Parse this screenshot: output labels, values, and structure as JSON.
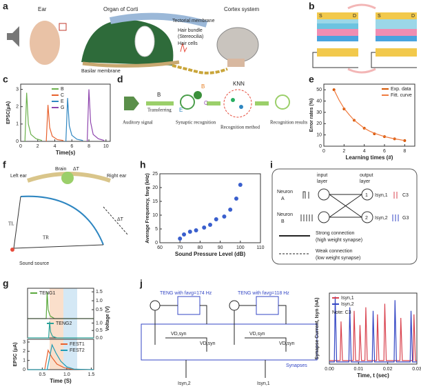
{
  "panels": {
    "letters": [
      "a",
      "b",
      "c",
      "d",
      "e",
      "f",
      "g",
      "h",
      "i",
      "j"
    ],
    "a": {
      "ear": "Ear",
      "organ": "Organ of Corti",
      "cortex": "Cortex system",
      "tectorial": "Tectorial membrane",
      "hair_bundle": "Hair bundle",
      "stereocilia": "(Stereocilia)",
      "hair_cells": "Hair cells",
      "basilar": "Basilar membrane"
    },
    "b": {
      "s1": "S",
      "d1": "D",
      "s2": "S",
      "d2": "D"
    },
    "d": {
      "auditory": "Auditory signal",
      "transferring": "Transferring",
      "b": "B",
      "synaptic": "Synaptic recognition",
      "method": "Recognition method",
      "knn": "KNN",
      "results": "Recognition results",
      "b2": "B",
      "c": "C",
      "e": "E"
    },
    "f": {
      "left": "Left ear",
      "brain": "Brain",
      "right": "Right ear",
      "dt1": "ΔT",
      "dt2": "ΔT",
      "tl": "TL",
      "tr": "TR",
      "source": "Sound source"
    },
    "i": {
      "input": "input",
      "input2": "layer",
      "output": "output",
      "output2": "layer",
      "na": "Neuron",
      "na2": "A",
      "nb": "Neuron",
      "nb2": "B",
      "n1": "1",
      "n2": "2",
      "i1": "Isyn,1",
      "i2": "Isyn,2",
      "c3": "C3",
      "g3": "G3",
      "strong": "Strong connection",
      "strong2": "(high weight synapse)",
      "weak": "Weak connection",
      "weak2": "(low weight synapse)"
    },
    "j": {
      "teng1": "TENG with favg=174 Hz",
      "teng2": "TENG with favg=118 Hz",
      "v1": "VD,syn",
      "v2": "VD,syn",
      "v3": "VD,syn",
      "v4": "VD,syn",
      "synapses": "Synapses",
      "isyn2": "Isyn,2",
      "isyn1": "Isyn,1"
    }
  },
  "chart_data": [
    {
      "type": "line",
      "ylabel": "EPSC(μA)",
      "xlabel": "Time(s)",
      "xlim": [
        0,
        10.5
      ],
      "xticks": [
        0,
        2,
        4,
        6,
        8,
        10
      ],
      "ylim": [
        0,
        3.3
      ],
      "yticks": [
        0,
        1,
        2,
        3
      ],
      "legend": "upper center",
      "series": [
        {
          "name": "B",
          "color": "#6ab04c",
          "x": [
            0.5,
            0.7,
            0.9,
            1.2,
            1.8,
            2.5
          ],
          "values": [
            0,
            2.8,
            1.0,
            0.4,
            0.15,
            0.05
          ]
        },
        {
          "name": "C",
          "color": "#e8602c",
          "x": [
            3.0,
            3.2,
            3.4,
            3.7,
            4.3,
            5.0
          ],
          "values": [
            0,
            2.1,
            0.8,
            0.3,
            0.1,
            0.05
          ]
        },
        {
          "name": "E",
          "color": "#2e86c1",
          "x": [
            5.3,
            5.5,
            5.7,
            6.0,
            6.6,
            7.3
          ],
          "values": [
            0,
            2.5,
            0.9,
            0.35,
            0.12,
            0.05
          ]
        },
        {
          "name": "G",
          "color": "#8e44ad",
          "x": [
            7.8,
            8.0,
            8.2,
            8.5,
            9.1,
            9.8
          ],
          "values": [
            0,
            3.0,
            1.1,
            0.4,
            0.15,
            0.05
          ]
        }
      ]
    },
    {
      "type": "line",
      "ylabel": "Error rates (%)",
      "xlabel": "Learning times (#)",
      "xlim": [
        0,
        9
      ],
      "xticks": [
        0,
        2,
        4,
        6,
        8
      ],
      "ylim": [
        0,
        55
      ],
      "yticks": [
        0,
        10,
        20,
        30,
        40,
        50
      ],
      "legend": "upper right",
      "series": [
        {
          "name": "Exp. data",
          "color": "#d35400",
          "style": "markers",
          "x": [
            1,
            2,
            3,
            4,
            5,
            6,
            7,
            8
          ],
          "values": [
            50,
            33,
            23,
            16,
            11,
            8.5,
            6.5,
            5
          ]
        },
        {
          "name": "Fitt. curve",
          "color": "#f07b3f",
          "style": "line",
          "x": [
            1,
            1.5,
            2,
            2.5,
            3,
            3.5,
            4,
            4.5,
            5,
            5.5,
            6,
            6.5,
            7,
            7.5,
            8
          ],
          "values": [
            50,
            41,
            33.5,
            28,
            23,
            19.5,
            16,
            13.5,
            11.5,
            10,
            8.5,
            7.5,
            6.5,
            5.8,
            5
          ]
        }
      ]
    },
    {
      "type": "scatter",
      "ylabel": "Average Frequency, favg (kHz)",
      "xlabel": "Sound Pressure Level (dB)",
      "xlim": [
        60,
        110
      ],
      "xticks": [
        60,
        70,
        80,
        90,
        100,
        110
      ],
      "ylim": [
        0,
        25
      ],
      "yticks": [
        0,
        5,
        10,
        15,
        20,
        25
      ],
      "series": [
        {
          "color": "#3a5fcd",
          "x": [
            70,
            72,
            75,
            78,
            82,
            85,
            88,
            92,
            95,
            98,
            100
          ],
          "values": [
            1.5,
            3,
            4,
            4.5,
            5.5,
            6.5,
            8.5,
            9.5,
            12,
            16,
            21
          ]
        }
      ]
    },
    {
      "type": "line",
      "ylabel": "Voltage (V)",
      "xlim": [
        0.2,
        1.55
      ],
      "ylim": [
        0,
        1.7
      ],
      "yticks": [
        {
          "value": 0.5,
          "label": "0.5"
        },
        {
          "value": 1,
          "label": "1.0"
        },
        {
          "value": 1.5,
          "label": "1.5"
        }
      ],
      "yaxis_side": "right",
      "legend": "upper left",
      "series": [
        {
          "name": "TENG1",
          "color": "#5aa83c",
          "x": [
            0.2,
            0.58,
            0.6,
            0.62,
            0.66,
            0.75,
            1.55
          ],
          "values": [
            0,
            0,
            1.5,
            0.5,
            0.15,
            0,
            0
          ]
        }
      ]
    },
    {
      "type": "line",
      "xlim": [
        0.2,
        1.55
      ],
      "ylim": [
        0,
        1.3
      ],
      "yticks": [
        {
          "value": 0,
          "label": "0.0"
        },
        {
          "value": 0.5,
          "label": "0.5"
        },
        {
          "value": 1,
          "label": "1.0"
        }
      ],
      "yaxis_side": "right",
      "legend": "upper center",
      "series": [
        {
          "name": "TENG2",
          "color": "#2aa198",
          "x": [
            0.2,
            0.63,
            0.65,
            0.67,
            0.71,
            0.8,
            1.55
          ],
          "values": [
            0,
            0,
            1.1,
            0.4,
            0.1,
            0,
            0
          ]
        }
      ]
    },
    {
      "type": "line",
      "ylabel": "EPSC (μA)",
      "xlabel": "Time (S)",
      "xlim": [
        0.2,
        1.55
      ],
      "xticks": [
        {
          "value": 0.5,
          "label": "0.5"
        },
        {
          "value": 1,
          "label": "1.0"
        },
        {
          "value": 1.5,
          "label": "1.5"
        }
      ],
      "ylim": [
        0,
        3.3
      ],
      "yticks": [
        0,
        1,
        2,
        3
      ],
      "legend": "upper right",
      "series": [
        {
          "name": "FEST1",
          "color": "#e8602c",
          "x": [
            0.2,
            0.55,
            0.62,
            0.7,
            0.8,
            0.95,
            1.1,
            1.55
          ],
          "values": [
            0,
            0,
            2.1,
            1.3,
            0.6,
            0.2,
            0.05,
            0
          ]
        },
        {
          "name": "FEST2",
          "color": "#1f9bb5",
          "x": [
            0.2,
            0.6,
            0.7,
            0.78,
            0.88,
            1.0,
            1.15,
            1.55
          ],
          "values": [
            0,
            0,
            2.7,
            1.8,
            0.9,
            0.3,
            0.05,
            0
          ]
        }
      ]
    },
    {
      "type": "line",
      "ylabel": "Synapse Current, Isyn (nA)",
      "xlabel": "Time, t (sec)",
      "xlim": [
        0,
        0.03
      ],
      "xticks": [
        {
          "value": 0,
          "label": "0.00"
        },
        {
          "value": 0.01,
          "label": "0.01"
        },
        {
          "value": 0.02,
          "label": "0.02"
        },
        {
          "value": 0.03,
          "label": "0.03"
        }
      ],
      "ylim": [
        0,
        1
      ],
      "legend": "upper left",
      "annotation": "Note: C3",
      "series": [
        {
          "name": "Isyn,1",
          "color": "#d9434f",
          "x": [
            0,
            0.0037,
            0.004,
            0.0045,
            0.0082,
            0.0085,
            0.009,
            0.0102,
            0.0105,
            0.011,
            0.0122,
            0.0125,
            0.013,
            0.0162,
            0.0165,
            0.017,
            0.0187,
            0.019,
            0.0195,
            0.0242,
            0.0245,
            0.025,
            0.0287,
            0.029,
            0.0295,
            0.03
          ],
          "values": [
            0.05,
            0.05,
            0.6,
            0.05,
            0.05,
            0.75,
            0.05,
            0.05,
            0.55,
            0.05,
            0.05,
            0.8,
            0.05,
            0.05,
            0.7,
            0.05,
            0.05,
            0.85,
            0.05,
            0.05,
            0.65,
            0.05,
            0.05,
            0.7,
            0.05,
            0.05
          ]
        },
        {
          "name": "Isyn,2",
          "color": "#3346c4",
          "x": [
            0,
            0.0017,
            0.002,
            0.0025,
            0.0067,
            0.007,
            0.0075,
            0.0147,
            0.015,
            0.0155,
            0.0222,
            0.0225,
            0.023,
            0.0277,
            0.028,
            0.0285,
            0.03
          ],
          "values": [
            0.03,
            0.03,
            0.95,
            0.03,
            0.03,
            0.8,
            0.03,
            0.03,
            0.75,
            0.03,
            0.03,
            0.9,
            0.03,
            0.03,
            0.75,
            0.03,
            0.03
          ]
        }
      ]
    }
  ]
}
